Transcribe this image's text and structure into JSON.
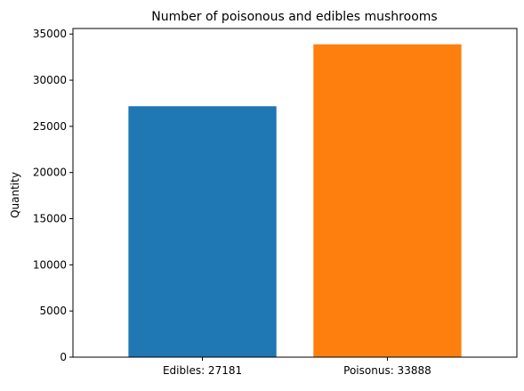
{
  "chart_data": {
    "type": "bar",
    "title": "Number of poisonous and edibles mushrooms",
    "xlabel": "",
    "ylabel": "Quantity",
    "categories": [
      "Edibles: 27181",
      "Poisonus: 33888"
    ],
    "values": [
      27181,
      33888
    ],
    "colors": [
      "#1f77b4",
      "#ff7f0e"
    ],
    "ylim": [
      0,
      35600
    ],
    "yticks": [
      0,
      5000,
      10000,
      15000,
      20000,
      25000,
      30000,
      35000
    ],
    "grid": false,
    "legend": "none"
  }
}
